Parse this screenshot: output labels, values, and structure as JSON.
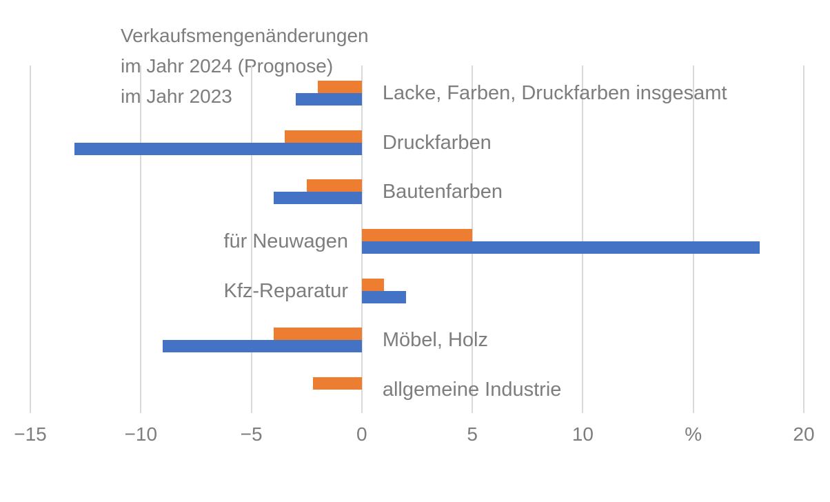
{
  "title": {
    "line1": "Verkaufsmengenänderungen",
    "line2": "im Jahr 2024 (Prognose)",
    "line3": "im Jahr 2023"
  },
  "colors": {
    "series_2024": "#ED7D31",
    "series_2023": "#4472C4",
    "gridline": "#D9D9D9",
    "text": "#7D7D7D"
  },
  "chart_data": {
    "type": "bar",
    "orientation": "horizontal",
    "title": "Verkaufsmengenänderungen",
    "unit": "%",
    "grid": true,
    "xlim": [
      -15,
      20
    ],
    "x_ticks": [
      {
        "value": -15,
        "label": "−15"
      },
      {
        "value": -10,
        "label": "−10"
      },
      {
        "value": -5,
        "label": "−5"
      },
      {
        "value": 0,
        "label": "0"
      },
      {
        "value": 5,
        "label": "5"
      },
      {
        "value": 10,
        "label": "10"
      },
      {
        "value": 15,
        "label": "%"
      },
      {
        "value": 20,
        "label": "20"
      }
    ],
    "categories": [
      "Lacke, Farben, Druckfarben insgesamt",
      "Druckfarben",
      "Bautenfarben",
      "für Neuwagen",
      "Kfz-Reparatur",
      "Möbel, Holz",
      "allgemeine Industrie"
    ],
    "label_side": [
      "right",
      "right",
      "right",
      "left",
      "left",
      "right",
      "right"
    ],
    "series": [
      {
        "name": "im Jahr 2024 (Prognose)",
        "color": "#ED7D31",
        "values": [
          -2,
          -3.5,
          -2.5,
          5,
          1,
          -4,
          -2.2
        ]
      },
      {
        "name": "im Jahr 2023",
        "color": "#4472C4",
        "values": [
          -3,
          -13,
          -4,
          18,
          2,
          -9,
          0
        ]
      }
    ],
    "legend_position": "top-left-as-subtitle"
  }
}
